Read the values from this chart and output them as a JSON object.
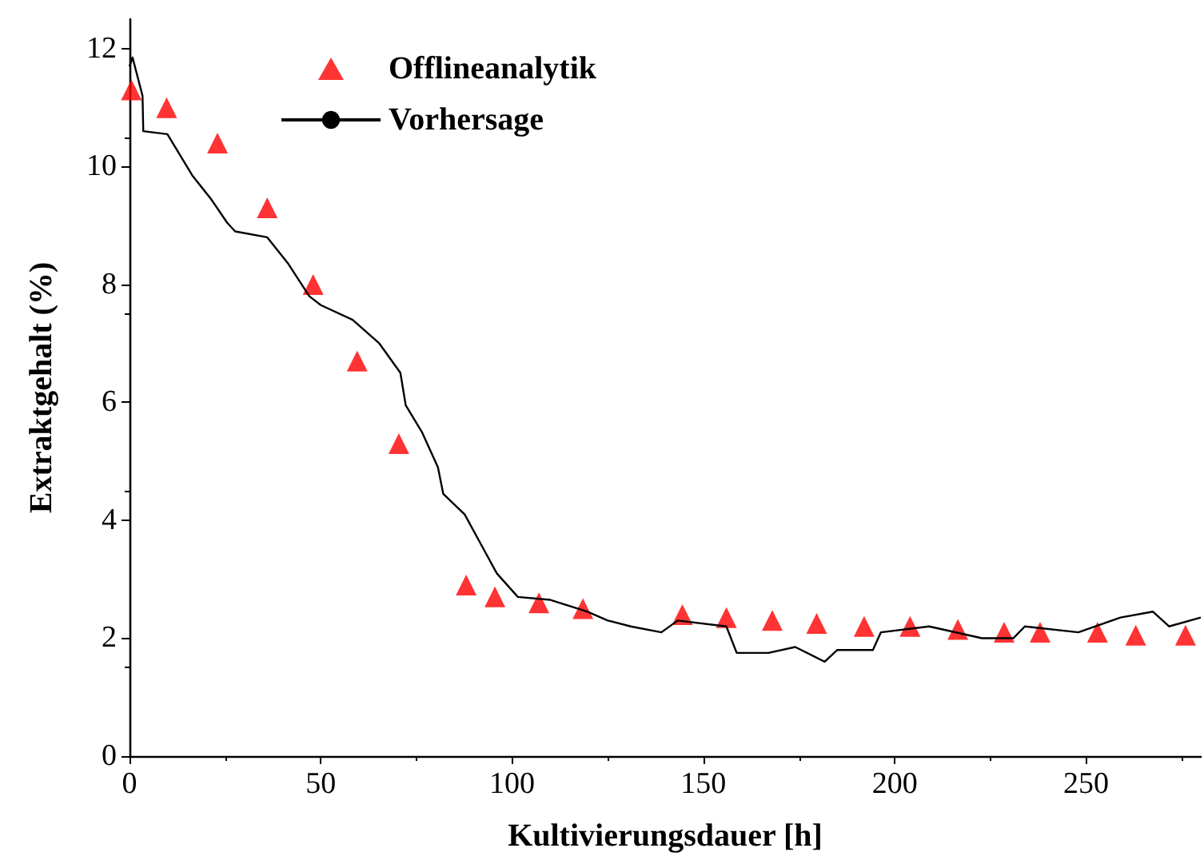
{
  "chart_data": {
    "type": "scatter",
    "xlabel": "Kultivierungsdauer [h]",
    "ylabel": "Extraktgehalt (%)",
    "xlim": [
      0,
      280
    ],
    "xticks": [
      0,
      50,
      100,
      150,
      200,
      250
    ],
    "ylim": [
      0,
      12.5
    ],
    "yticks": [
      0,
      2,
      4,
      6,
      8,
      10,
      12
    ],
    "grid": false,
    "legend": "top left",
    "series": [
      {
        "name": "Offlineanalytik",
        "marker": "triangle",
        "color": "#ff0000",
        "x": [
          0.5,
          9.7,
          23,
          36,
          48,
          59.5,
          70.4,
          88,
          95.5,
          107,
          118.5,
          144.5,
          156,
          168,
          179.6,
          192,
          204,
          216.5,
          228.6,
          238,
          253,
          263,
          276
        ],
        "values": [
          11.3,
          11.0,
          10.4,
          9.3,
          8.0,
          6.7,
          5.3,
          2.9,
          2.7,
          2.6,
          2.5,
          2.4,
          2.35,
          2.3,
          2.25,
          2.2,
          2.2,
          2.15,
          2.1,
          2.1,
          2.1,
          2.05,
          2.05
        ]
      },
      {
        "name": "Vorhersage",
        "type": "line",
        "marker": "none",
        "line_style": "solid",
        "color": "#000000",
        "x": [
          0,
          0.8,
          3.4,
          3.6,
          9.9,
          16.4,
          21.3,
          25.5,
          27.6,
          36,
          41.5,
          47,
          50,
          58.3,
          65.3,
          70.8,
          72.2,
          76.4,
          80.6,
          82,
          87.6,
          91.8,
          96,
          101.5,
          110,
          119.7,
          125,
          131,
          139,
          143.3,
          156,
          158.7,
          167,
          174,
          181.7,
          185,
          194.3,
          196.4,
          209,
          222.8,
          231,
          234,
          248,
          259,
          267.5,
          271.7,
          280
        ],
        "values": [
          11.7,
          11.85,
          11.2,
          10.6,
          10.55,
          9.85,
          9.45,
          9.05,
          8.9,
          8.8,
          8.35,
          7.8,
          7.65,
          7.4,
          7.0,
          6.5,
          5.95,
          5.5,
          4.9,
          4.45,
          4.1,
          3.6,
          3.1,
          2.7,
          2.65,
          2.45,
          2.3,
          2.2,
          2.1,
          2.3,
          2.2,
          1.75,
          1.75,
          1.85,
          1.6,
          1.8,
          1.8,
          2.1,
          2.2,
          2.0,
          2.0,
          2.2,
          2.1,
          2.35,
          2.45,
          2.2,
          2.35
        ]
      }
    ]
  }
}
